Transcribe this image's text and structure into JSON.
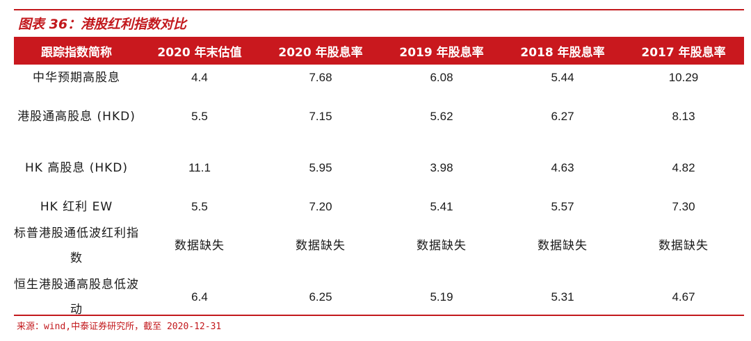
{
  "title": "图表 36：港股红利指数对比",
  "table": {
    "headers": [
      "跟踪指数简称",
      "2020 年末估值",
      "2020 年股息率",
      "2019 年股息率",
      "2018 年股息率",
      "2017 年股息率"
    ],
    "rows": [
      {
        "name": "中华预期高股息",
        "values": [
          "4.4",
          "7.68",
          "6.08",
          "5.44",
          "10.29"
        ]
      },
      {
        "name": "港股通高股息 (HKD)",
        "values": [
          "5.5",
          "7.15",
          "5.62",
          "6.27",
          "8.13"
        ]
      },
      {
        "name": "HK 高股息 (HKD)",
        "values": [
          "11.1",
          "5.95",
          "3.98",
          "4.63",
          "4.82"
        ]
      },
      {
        "name": "HK 红利 EW",
        "values": [
          "5.5",
          "7.20",
          "5.41",
          "5.57",
          "7.30"
        ]
      },
      {
        "name": "标普港股通低波红利指数",
        "values": [
          "数据缺失",
          "数据缺失",
          "数据缺失",
          "数据缺失",
          "数据缺失"
        ]
      },
      {
        "name": "恒生港股通高股息低波动",
        "values": [
          "6.4",
          "6.25",
          "5.19",
          "5.31",
          "4.67"
        ]
      }
    ]
  },
  "source": "来源：wind,中泰证券研究所，截至 2020-12-31",
  "colors": {
    "accent": "#c2181c",
    "header_bg": "#c9181e",
    "header_text": "#ffffff",
    "body_text": "#1a1a1a"
  }
}
